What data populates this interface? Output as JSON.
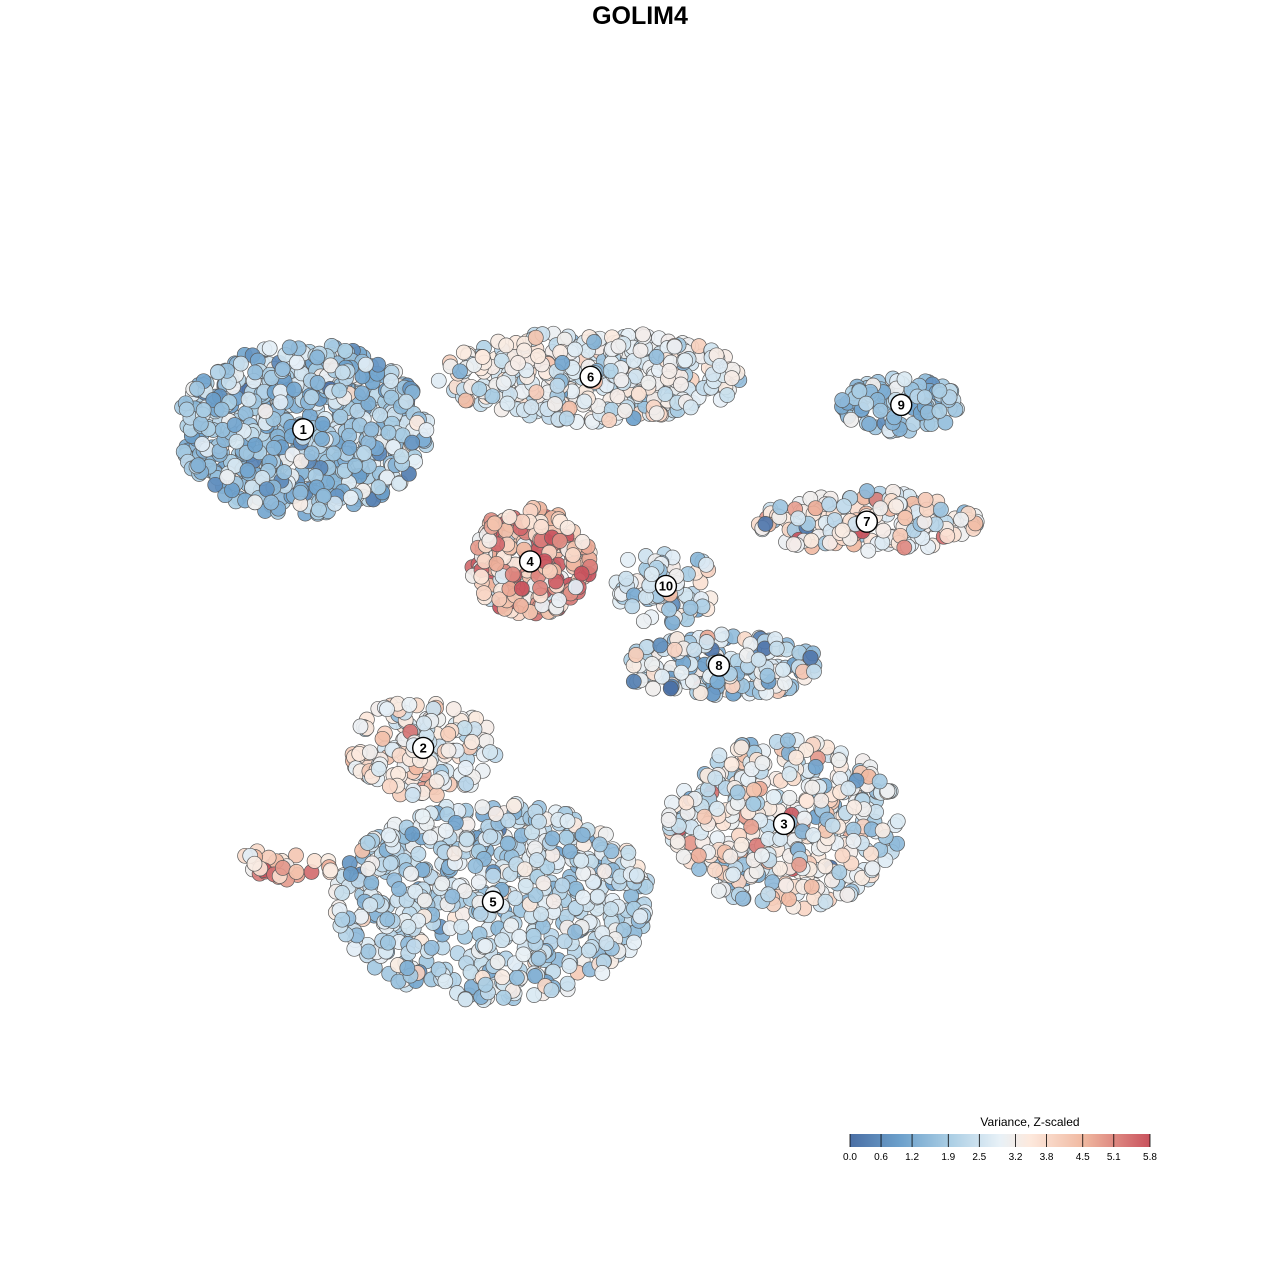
{
  "chart_data": {
    "type": "scatter",
    "title": "GOLIM4",
    "xlabel": "",
    "ylabel": "",
    "xlim": [
      0,
      1000
    ],
    "ylim": [
      0,
      1000
    ],
    "grid": false,
    "legend": {
      "title": "Variance, Z-scaled",
      "placement": "bottom-right",
      "ticks": [
        "0.0",
        "0.6",
        "1.2",
        "1.9",
        "2.5",
        "3.2",
        "3.8",
        "4.5",
        "5.1",
        "5.8"
      ],
      "range": [
        0,
        5.8
      ],
      "colors": [
        "#4a6fa5",
        "#6da1cc",
        "#a9cde4",
        "#e8f1f7",
        "#fde9dd",
        "#f0b8a0",
        "#c9525d"
      ]
    },
    "clusters": [
      {
        "label": "1",
        "x": 111,
        "y": 730,
        "n": 700,
        "rx": 135,
        "ry": 95,
        "mean": 1.9,
        "sd": 0.75
      },
      {
        "label": "6",
        "x": 420,
        "y": 788,
        "n": 420,
        "rx": 165,
        "ry": 50,
        "mean": 3.0,
        "sd": 0.75
      },
      {
        "label": "9",
        "x": 754,
        "y": 757,
        "n": 120,
        "rx": 65,
        "ry": 30,
        "mean": 1.9,
        "sd": 0.55
      },
      {
        "label": "7",
        "x": 717,
        "y": 628,
        "n": 160,
        "rx": 120,
        "ry": 35,
        "mean": 3.2,
        "sd": 1.0
      },
      {
        "label": "4",
        "x": 355,
        "y": 584,
        "n": 230,
        "rx": 65,
        "ry": 60,
        "mean": 4.6,
        "sd": 0.9
      },
      {
        "label": "10",
        "x": 501,
        "y": 557,
        "n": 80,
        "rx": 55,
        "ry": 45,
        "mean": 2.6,
        "sd": 0.9
      },
      {
        "label": "8",
        "x": 558,
        "y": 469,
        "n": 180,
        "rx": 110,
        "ry": 35,
        "mean": 2.2,
        "sd": 1.3
      },
      {
        "label": "2",
        "x": 240,
        "y": 378,
        "n": 170,
        "rx": 80,
        "ry": 55,
        "mean": 3.4,
        "sd": 0.8
      },
      {
        "label": "3",
        "x": 628,
        "y": 294,
        "n": 400,
        "rx": 125,
        "ry": 95,
        "mean": 3.1,
        "sd": 0.95
      },
      {
        "label": "5",
        "x": 315,
        "y": 208,
        "n": 650,
        "rx": 170,
        "ry": 110,
        "mean": 2.4,
        "sd": 0.75
      }
    ],
    "extra_groups": [
      {
        "name": "left-strip",
        "x": 95,
        "y": 250,
        "n": 30,
        "rx": 55,
        "ry": 18,
        "mean": 4.5,
        "sd": 0.7
      }
    ]
  }
}
